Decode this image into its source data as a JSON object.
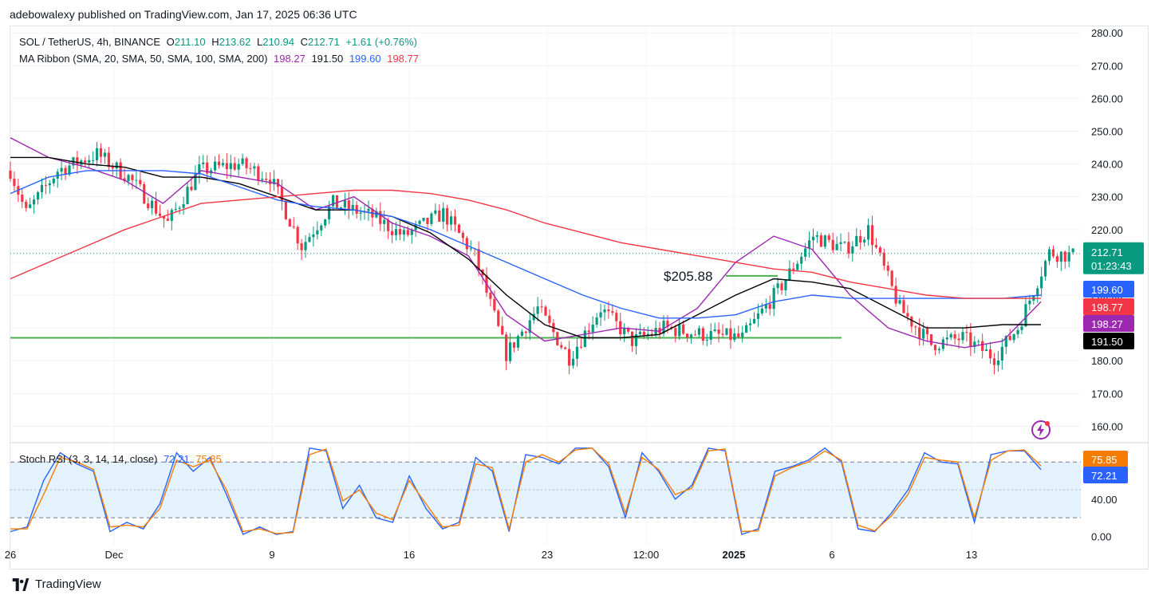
{
  "publisher_line": "adebowalexy published on TradingView.com, Jan 17, 2025 06:36 UTC",
  "legend": {
    "symbol": "SOL / TetherUS, 4h, BINANCE",
    "o_label": "O",
    "o_value": "211.10",
    "h_label": "H",
    "h_value": "213.62",
    "l_label": "L",
    "l_value": "210.94",
    "c_label": "C",
    "c_value": "212.71",
    "change": "+1.61 (+0.76%)",
    "ma_label": "MA Ribbon (SMA, 20, SMA, 50, SMA, 100, SMA, 200)",
    "ma_values": [
      "198.27",
      "191.50",
      "199.60",
      "198.77"
    ],
    "rsi_label": "Stoch RSI (3, 3, 14, 14, close)",
    "rsi_k": "72.21",
    "rsi_d": "75.85"
  },
  "annotation": "$205.88",
  "price_badge": {
    "price": "212.71",
    "countdown": "01:23:43"
  },
  "ma_badges": [
    {
      "value": "199.60",
      "color": "#2962ff"
    },
    {
      "value": "198.77",
      "color": "#f23645"
    },
    {
      "value": "198.27",
      "color": "#9c27b0"
    },
    {
      "value": "191.50",
      "color": "#000000"
    }
  ],
  "rsi_badges": [
    {
      "value": "75.85",
      "color": "#f57c00"
    },
    {
      "value": "72.21",
      "color": "#2962ff"
    }
  ],
  "footer_brand": "TradingView",
  "colors": {
    "up": "#089981",
    "down": "#f23645",
    "ma20": "#9c27b0",
    "ma50": "#000000",
    "ma100": "#2962ff",
    "ma200": "#f23645",
    "support": "#4caf50",
    "rsi_k": "#2962ff",
    "rsi_d": "#f57c00",
    "rsi_band": "#e3f2fd"
  },
  "chart_data": [
    {
      "type": "candlestick",
      "price_axis": {
        "ticks": [
          "280.00",
          "270.00",
          "260.00",
          "250.00",
          "240.00",
          "230.00",
          "220.00",
          "210.00",
          "200.00",
          "190.00",
          "180.00",
          "170.00",
          "160.00"
        ],
        "ylim": [
          155,
          282
        ]
      },
      "time_axis": {
        "labels": [
          "26",
          "Dec",
          "9",
          "16",
          "23",
          "12:00",
          "2025",
          "6",
          "13"
        ],
        "bold": [
          "2025"
        ]
      },
      "support_line": 187.0,
      "resistance_marker": 205.88,
      "last_price": 212.71,
      "ohlc_keypoints": [
        {
          "t": 0,
          "p": 238
        },
        {
          "t": 4,
          "p": 225
        },
        {
          "t": 12,
          "p": 238
        },
        {
          "t": 22,
          "p": 243
        },
        {
          "t": 30,
          "p": 236
        },
        {
          "t": 40,
          "p": 222
        },
        {
          "t": 48,
          "p": 238
        },
        {
          "t": 58,
          "p": 240
        },
        {
          "t": 66,
          "p": 236
        },
        {
          "t": 74,
          "p": 215
        },
        {
          "t": 82,
          "p": 228
        },
        {
          "t": 92,
          "p": 224
        },
        {
          "t": 100,
          "p": 218
        },
        {
          "t": 110,
          "p": 225
        },
        {
          "t": 118,
          "p": 212
        },
        {
          "t": 126,
          "p": 182
        },
        {
          "t": 134,
          "p": 196
        },
        {
          "t": 142,
          "p": 181
        },
        {
          "t": 150,
          "p": 196
        },
        {
          "t": 158,
          "p": 186
        },
        {
          "t": 166,
          "p": 190
        },
        {
          "t": 176,
          "p": 188
        },
        {
          "t": 186,
          "p": 187
        },
        {
          "t": 196,
          "p": 203
        },
        {
          "t": 204,
          "p": 218
        },
        {
          "t": 212,
          "p": 214
        },
        {
          "t": 218,
          "p": 220
        },
        {
          "t": 226,
          "p": 196
        },
        {
          "t": 234,
          "p": 185
        },
        {
          "t": 242,
          "p": 187
        },
        {
          "t": 250,
          "p": 181
        },
        {
          "t": 256,
          "p": 190
        },
        {
          "t": 264,
          "p": 213
        },
        {
          "t": 270,
          "p": 212
        }
      ],
      "ma_series": [
        {
          "period": 20,
          "values": [
            248,
            242,
            239,
            235,
            228,
            238,
            236,
            234,
            226,
            230,
            222,
            218,
            212,
            194,
            186,
            188,
            190,
            189,
            196,
            210,
            218,
            214,
            200,
            190,
            186,
            184,
            186,
            198
          ]
        },
        {
          "period": 50,
          "values": [
            242,
            242,
            240,
            239,
            236,
            236,
            234,
            230,
            226,
            226,
            224,
            219,
            211,
            200,
            191,
            187,
            187,
            188,
            194,
            200,
            205,
            204,
            202,
            196,
            190,
            190,
            191,
            191
          ]
        },
        {
          "period": 100,
          "values": [
            231,
            236,
            238,
            238,
            238,
            237,
            233,
            229,
            227,
            226,
            224,
            220,
            215,
            210,
            205,
            200,
            196,
            193,
            193,
            194,
            198,
            200,
            199,
            199,
            199,
            199,
            199,
            200
          ]
        },
        {
          "period": 200,
          "values": [
            205,
            210,
            215,
            220,
            224,
            228,
            229,
            230,
            231,
            232,
            232,
            231,
            229,
            226,
            222,
            219,
            216,
            214,
            212,
            210,
            208,
            207,
            204,
            202,
            200,
            199,
            199,
            199
          ]
        }
      ]
    },
    {
      "type": "line",
      "title": "Stoch RSI (3, 3, 14, 14, close)",
      "y_ticks": [
        "40.00",
        "0.00"
      ],
      "ylim": [
        -10,
        100
      ],
      "band": [
        20,
        80
      ],
      "series": [
        {
          "name": "K",
          "values": [
            5,
            10,
            60,
            90,
            78,
            70,
            5,
            15,
            8,
            35,
            90,
            70,
            85,
            45,
            2,
            10,
            2,
            5,
            95,
            92,
            30,
            55,
            20,
            15,
            65,
            30,
            8,
            15,
            85,
            70,
            5,
            88,
            85,
            78,
            95,
            95,
            75,
            20,
            90,
            70,
            40,
            55,
            95,
            92,
            2,
            8,
            70,
            75,
            82,
            95,
            80,
            8,
            5,
            25,
            50,
            90,
            80,
            78,
            15,
            88,
            92,
            92,
            72
          ]
        },
        {
          "name": "D",
          "values": [
            8,
            8,
            45,
            85,
            80,
            72,
            10,
            12,
            10,
            30,
            82,
            75,
            82,
            50,
            5,
            8,
            3,
            4,
            88,
            94,
            38,
            50,
            25,
            18,
            60,
            35,
            10,
            12,
            78,
            74,
            8,
            80,
            88,
            80,
            93,
            95,
            78,
            25,
            85,
            72,
            45,
            52,
            92,
            94,
            5,
            6,
            65,
            74,
            80,
            92,
            82,
            12,
            6,
            22,
            45,
            85,
            82,
            80,
            20,
            82,
            92,
            93,
            75.85
          ]
        }
      ]
    }
  ]
}
